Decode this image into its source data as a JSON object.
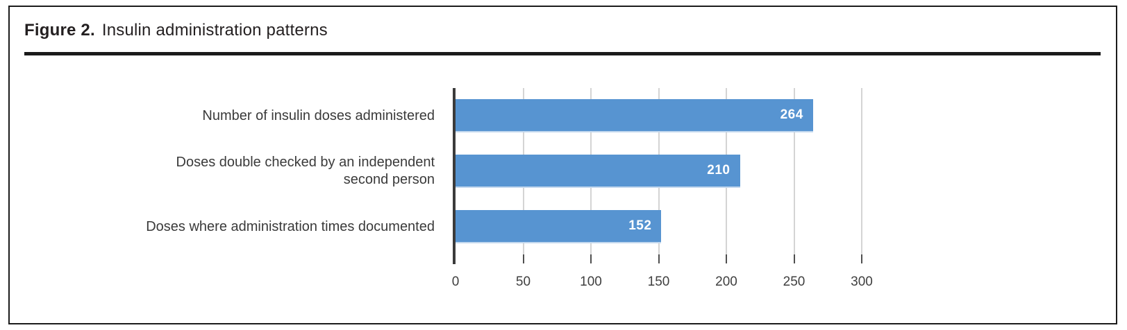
{
  "figure": {
    "label": "Figure 2.",
    "title": "Insulin administration patterns"
  },
  "chart_data": {
    "type": "bar",
    "orientation": "horizontal",
    "title": "Insulin administration patterns",
    "categories": [
      "Number of insulin doses administered",
      "Doses double checked by an independent\nsecond person",
      "Doses where administration times documented"
    ],
    "values": [
      264,
      210,
      152
    ],
    "value_labels": [
      "264",
      "210",
      "152"
    ],
    "xlabel": "",
    "ylabel": "",
    "xlim": [
      0,
      300
    ],
    "xticks": [
      0,
      50,
      100,
      150,
      200,
      250,
      300
    ],
    "grid": "vertical-gridlines-on",
    "legend": "none",
    "bar_color": "#5794d1",
    "value_label_color": "#ffffff"
  },
  "colors": {
    "border": "#1b1b1b",
    "title_text": "#231f20",
    "category_text": "#3a3a3a",
    "axis_line": "#3b3b3b",
    "gridline": "#d4d4d4",
    "tick": "#4f4f4f",
    "tick_label": "#3f3f3f"
  }
}
